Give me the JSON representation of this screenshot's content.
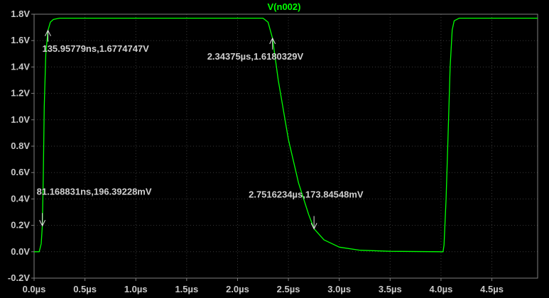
{
  "chart_data": {
    "type": "line",
    "title": "V(n002)",
    "xlabel": "",
    "ylabel": "",
    "xlim": [
      0,
      4.95
    ],
    "ylim": [
      -0.2,
      1.8
    ],
    "x_ticks": [
      0,
      0.5,
      1.0,
      1.5,
      2.0,
      2.5,
      3.0,
      3.5,
      4.0,
      4.5
    ],
    "x_tick_labels": [
      "0.0µs",
      "0.5µs",
      "1.0µs",
      "1.5µs",
      "2.0µs",
      "2.5µs",
      "3.0µs",
      "3.5µs",
      "4.0µs",
      "4.5µs"
    ],
    "y_ticks": [
      -0.2,
      0.0,
      0.2,
      0.4,
      0.6,
      0.8,
      1.0,
      1.2,
      1.4,
      1.6,
      1.8
    ],
    "y_tick_labels": [
      "-0.2V",
      "0.0V",
      "0.2V",
      "0.4V",
      "0.6V",
      "0.8V",
      "1.0V",
      "1.2V",
      "1.4V",
      "1.6V",
      "1.8V"
    ],
    "series": [
      {
        "name": "V(n002)",
        "color": "#00ff00",
        "x": [
          0,
          0.05,
          0.07,
          0.081,
          0.09,
          0.1,
          0.115,
          0.136,
          0.16,
          0.19,
          0.25,
          0.5,
          1.0,
          2.0,
          2.25,
          2.3,
          2.344,
          2.4,
          2.5,
          2.6,
          2.7,
          2.752,
          2.85,
          3.0,
          3.2,
          3.5,
          4.02,
          4.03,
          4.05,
          4.07,
          4.09,
          4.11,
          4.13,
          4.18,
          4.5,
          4.95
        ],
        "y": [
          0.0,
          0.0,
          0.06,
          0.196,
          0.55,
          1.1,
          1.5,
          1.677,
          1.74,
          1.76,
          1.77,
          1.77,
          1.77,
          1.77,
          1.77,
          1.74,
          1.618,
          1.3,
          0.85,
          0.52,
          0.28,
          0.174,
          0.09,
          0.035,
          0.012,
          0.003,
          0.0,
          0.05,
          0.4,
          0.9,
          1.4,
          1.68,
          1.75,
          1.77,
          1.77,
          1.77
        ]
      }
    ],
    "annotations": [
      {
        "x": 0.13595779,
        "y": 1.6774747,
        "text": "135.95779ns,1.6774747V",
        "arrow": "up"
      },
      {
        "x": 0.081168831,
        "y": 0.19639228,
        "text": "81.168831ns,196.39228mV",
        "arrow": "down"
      },
      {
        "x": 2.34375,
        "y": 1.6180329,
        "text": "2.34375µs,1.6180329V",
        "arrow": "up"
      },
      {
        "x": 2.7516234,
        "y": 0.17384548,
        "text": "2.7516234µs,173.84548mV",
        "arrow": "down"
      }
    ],
    "grid": true,
    "background": "#000000",
    "axis_color": "#808080",
    "text_color": "#c8c8c8"
  }
}
